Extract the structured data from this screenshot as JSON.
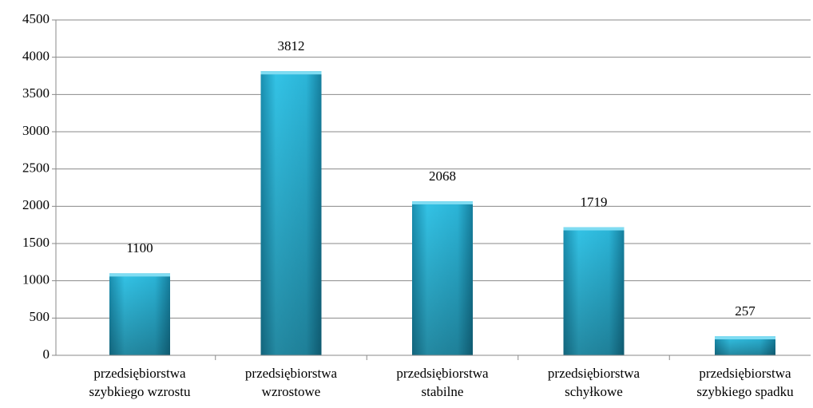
{
  "chart_data": {
    "type": "bar",
    "categories": [
      "przedsiębiorstwa szybkiego wzrostu",
      "przedsiębiorstwa wzrostowe",
      "przedsiębiorstwa stabilne",
      "przedsiębiorstwa schyłkowe",
      "przedsiębiorstwa szybkiego spadku"
    ],
    "values": [
      1100,
      3812,
      2068,
      1719,
      257
    ],
    "color": "#2bb5d8",
    "ylim": [
      0,
      4500
    ],
    "yticks": [
      0,
      500,
      1000,
      1500,
      2000,
      2500,
      3000,
      3500,
      4000,
      4500
    ],
    "grid": true
  }
}
